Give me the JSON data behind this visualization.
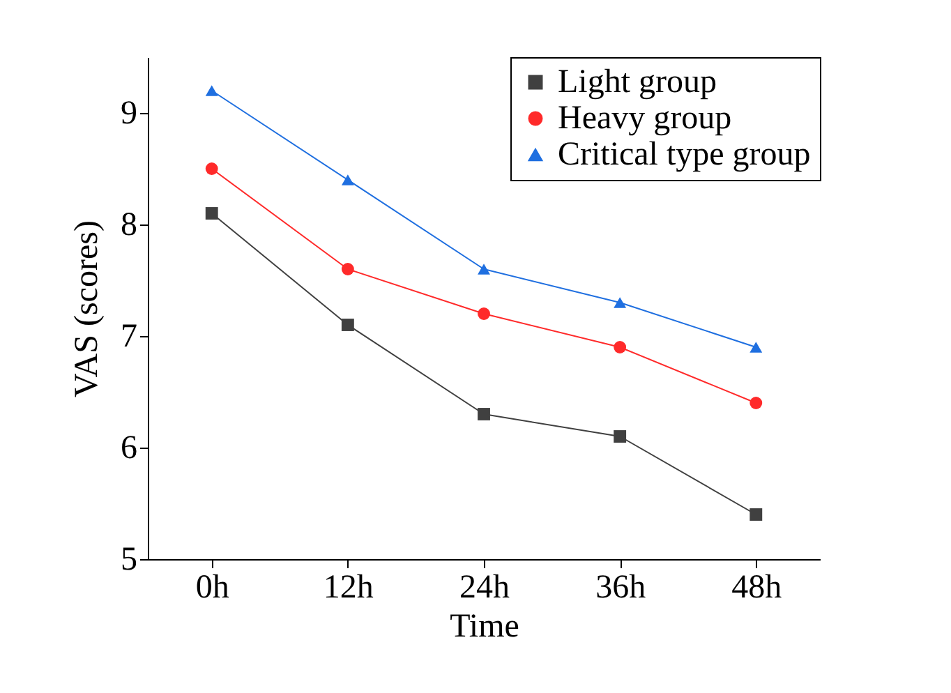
{
  "chart_data": {
    "type": "line",
    "xlabel": "Time",
    "ylabel": "VAS (scores)",
    "categories": [
      "0h",
      "12h",
      "24h",
      "36h",
      "48h"
    ],
    "series": [
      {
        "name": "Light group",
        "color": "#404040",
        "marker": "square",
        "values": [
          8.1,
          7.1,
          6.3,
          6.1,
          5.4
        ]
      },
      {
        "name": "Heavy group",
        "color": "#ff2a2a",
        "marker": "circle",
        "values": [
          8.5,
          7.6,
          7.2,
          6.9,
          6.4
        ]
      },
      {
        "name": "Critical type group",
        "color": "#1f6fe0",
        "marker": "triangle",
        "values": [
          9.2,
          8.4,
          7.6,
          7.3,
          6.9
        ]
      }
    ],
    "ylim": [
      5,
      9.5
    ],
    "yticks": [
      5,
      6,
      7,
      8,
      9
    ],
    "grid": false,
    "legend": "top right",
    "line_style": "solid"
  }
}
